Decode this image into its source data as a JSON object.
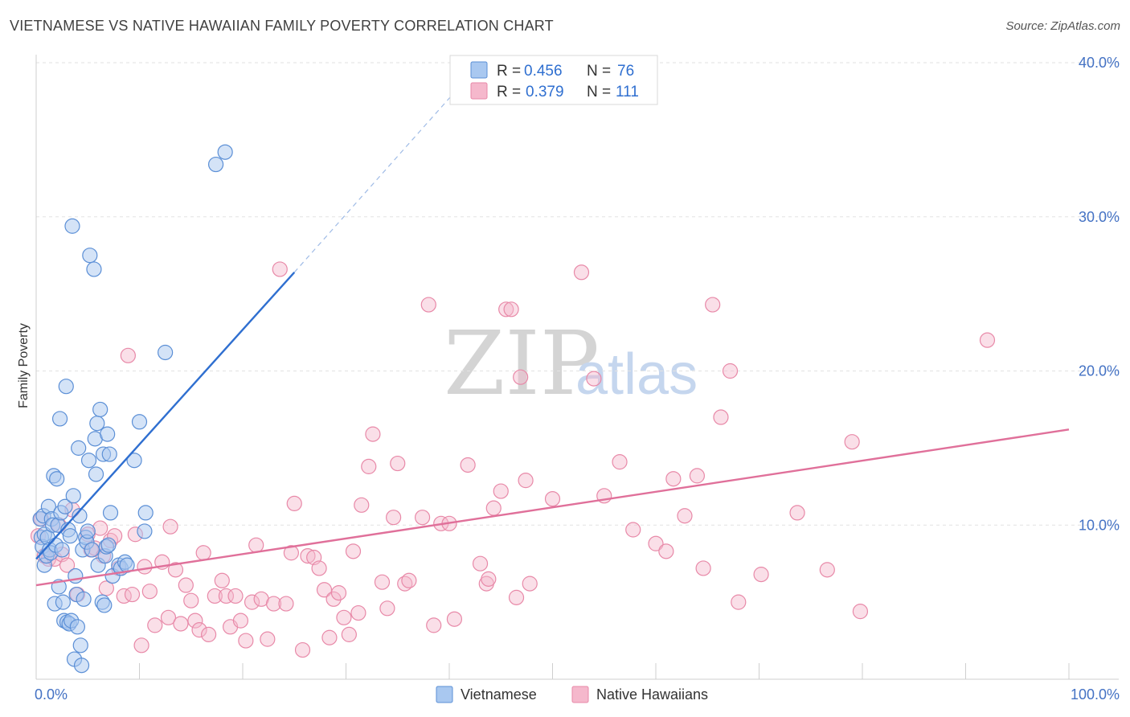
{
  "title": "VIETNAMESE VS NATIVE HAWAIIAN FAMILY POVERTY CORRELATION CHART",
  "source": "Source: ZipAtlas.com",
  "watermark": {
    "zip": "ZIP",
    "atlas": "atlas"
  },
  "colors": {
    "blue_fill": "#a9c8f0",
    "blue_stroke": "#5b8fd6",
    "blue_line": "#2f6fd0",
    "pink_fill": "#f5b8cc",
    "pink_stroke": "#e889a8",
    "pink_line": "#e0709a",
    "grid": "#e2e2e2",
    "axis_text": "#4472c4"
  },
  "legend": {
    "rows": [
      {
        "r_label": "R =",
        "r_value": "0.456",
        "n_label": "N =",
        "n_value": "76"
      },
      {
        "r_label": "R =",
        "r_value": "0.379",
        "n_label": "N =",
        "n_value": "111"
      }
    ]
  },
  "bottom_legend": [
    "Vietnamese",
    "Native Hawaiians"
  ],
  "chart_data": {
    "type": "scatter",
    "title": "VIETNAMESE VS NATIVE HAWAIIAN FAMILY POVERTY CORRELATION CHART",
    "xlabel": "",
    "ylabel": "Family Poverty",
    "xlim": [
      0,
      100
    ],
    "ylim": [
      0,
      40
    ],
    "x_tick_labels": [
      "0.0%",
      "100.0%"
    ],
    "y_ticks": [
      10,
      20,
      30,
      40
    ],
    "y_tick_labels": [
      "10.0%",
      "20.0%",
      "30.0%",
      "40.0%"
    ],
    "series": [
      {
        "name": "Vietnamese",
        "r": 0.456,
        "n": 76,
        "trend": {
          "x": [
            0,
            25
          ],
          "y": [
            7.8,
            26.4
          ]
        },
        "trend_dashed": {
          "x": [
            25,
            42
          ],
          "y": [
            26.4,
            39.2
          ]
        },
        "points": [
          [
            0.4,
            10.4
          ],
          [
            0.5,
            9.2
          ],
          [
            0.6,
            8.6
          ],
          [
            0.7,
            10.6
          ],
          [
            0.8,
            9.4
          ],
          [
            0.8,
            7.4
          ],
          [
            1.0,
            8.0
          ],
          [
            1.1,
            9.2
          ],
          [
            1.2,
            11.2
          ],
          [
            1.3,
            8.4
          ],
          [
            1.4,
            8.2
          ],
          [
            1.5,
            10.4
          ],
          [
            1.6,
            10.0
          ],
          [
            1.7,
            13.2
          ],
          [
            1.8,
            4.9
          ],
          [
            1.9,
            8.7
          ],
          [
            2.0,
            13.0
          ],
          [
            2.1,
            10.0
          ],
          [
            2.2,
            6.0
          ],
          [
            2.3,
            16.9
          ],
          [
            2.4,
            10.8
          ],
          [
            2.5,
            8.4
          ],
          [
            2.6,
            5.0
          ],
          [
            2.7,
            3.8
          ],
          [
            2.8,
            11.2
          ],
          [
            2.9,
            19.0
          ],
          [
            3.0,
            3.7
          ],
          [
            3.1,
            9.7
          ],
          [
            3.2,
            3.6
          ],
          [
            3.3,
            9.3
          ],
          [
            3.4,
            3.8
          ],
          [
            3.5,
            29.4
          ],
          [
            3.6,
            11.9
          ],
          [
            3.7,
            1.3
          ],
          [
            3.8,
            6.7
          ],
          [
            3.9,
            5.5
          ],
          [
            4.0,
            3.4
          ],
          [
            4.1,
            15.0
          ],
          [
            4.2,
            10.6
          ],
          [
            4.3,
            2.2
          ],
          [
            4.4,
            0.9
          ],
          [
            4.5,
            8.4
          ],
          [
            4.6,
            5.2
          ],
          [
            4.8,
            9.2
          ],
          [
            4.9,
            8.9
          ],
          [
            5.0,
            9.6
          ],
          [
            5.1,
            14.2
          ],
          [
            5.2,
            27.5
          ],
          [
            5.4,
            8.4
          ],
          [
            5.6,
            26.6
          ],
          [
            5.7,
            15.6
          ],
          [
            5.8,
            13.3
          ],
          [
            5.9,
            16.6
          ],
          [
            6.0,
            7.4
          ],
          [
            6.2,
            17.5
          ],
          [
            6.4,
            5.0
          ],
          [
            6.5,
            14.6
          ],
          [
            6.6,
            4.8
          ],
          [
            6.7,
            8.0
          ],
          [
            6.8,
            8.6
          ],
          [
            6.9,
            15.9
          ],
          [
            7.0,
            8.7
          ],
          [
            7.1,
            14.6
          ],
          [
            7.2,
            10.8
          ],
          [
            7.4,
            6.7
          ],
          [
            8.0,
            7.4
          ],
          [
            8.2,
            7.2
          ],
          [
            8.6,
            7.6
          ],
          [
            8.8,
            7.4
          ],
          [
            9.5,
            14.2
          ],
          [
            10.0,
            16.7
          ],
          [
            10.5,
            9.6
          ],
          [
            10.6,
            10.8
          ],
          [
            12.5,
            21.2
          ],
          [
            17.4,
            33.4
          ],
          [
            18.3,
            34.2
          ]
        ]
      },
      {
        "name": "Native Hawaiians",
        "r": 0.379,
        "n": 111,
        "trend": {
          "x": [
            0,
            100
          ],
          "y": [
            6.1,
            16.2
          ]
        },
        "points": [
          [
            0.2,
            9.3
          ],
          [
            0.5,
            10.4
          ],
          [
            0.8,
            8.0
          ],
          [
            1.2,
            7.8
          ],
          [
            1.8,
            7.8
          ],
          [
            2.2,
            10.0
          ],
          [
            2.5,
            8.1
          ],
          [
            3.0,
            7.4
          ],
          [
            3.5,
            11.0
          ],
          [
            4.0,
            5.5
          ],
          [
            5.0,
            9.4
          ],
          [
            5.3,
            8.4
          ],
          [
            5.7,
            8.5
          ],
          [
            6.2,
            9.8
          ],
          [
            6.5,
            8.0
          ],
          [
            6.8,
            5.9
          ],
          [
            7.2,
            9.0
          ],
          [
            7.6,
            9.3
          ],
          [
            8.0,
            7.2
          ],
          [
            8.5,
            5.4
          ],
          [
            8.9,
            21.0
          ],
          [
            9.3,
            5.5
          ],
          [
            9.6,
            9.4
          ],
          [
            10.2,
            2.2
          ],
          [
            10.5,
            7.3
          ],
          [
            11.0,
            5.7
          ],
          [
            11.5,
            3.5
          ],
          [
            12.2,
            7.6
          ],
          [
            12.8,
            4.0
          ],
          [
            13.0,
            9.9
          ],
          [
            13.5,
            7.1
          ],
          [
            14.0,
            3.6
          ],
          [
            14.5,
            6.1
          ],
          [
            15.0,
            5.1
          ],
          [
            15.4,
            3.8
          ],
          [
            15.8,
            3.2
          ],
          [
            16.2,
            8.2
          ],
          [
            16.7,
            2.9
          ],
          [
            17.3,
            5.4
          ],
          [
            18.0,
            6.4
          ],
          [
            18.4,
            5.4
          ],
          [
            18.8,
            3.4
          ],
          [
            19.3,
            5.4
          ],
          [
            19.8,
            3.8
          ],
          [
            20.3,
            2.5
          ],
          [
            20.9,
            5.0
          ],
          [
            21.3,
            8.7
          ],
          [
            21.8,
            5.2
          ],
          [
            22.4,
            2.6
          ],
          [
            23.0,
            4.9
          ],
          [
            23.6,
            26.6
          ],
          [
            24.2,
            4.9
          ],
          [
            24.7,
            8.2
          ],
          [
            25.0,
            11.4
          ],
          [
            25.8,
            1.9
          ],
          [
            26.3,
            8.0
          ],
          [
            26.9,
            7.9
          ],
          [
            27.4,
            7.2
          ],
          [
            27.9,
            5.8
          ],
          [
            28.4,
            2.7
          ],
          [
            28.8,
            5.2
          ],
          [
            29.3,
            5.6
          ],
          [
            29.8,
            4.0
          ],
          [
            30.3,
            2.9
          ],
          [
            30.7,
            8.3
          ],
          [
            31.2,
            4.3
          ],
          [
            31.5,
            11.3
          ],
          [
            32.2,
            13.8
          ],
          [
            32.6,
            15.9
          ],
          [
            33.5,
            6.3
          ],
          [
            34.0,
            4.6
          ],
          [
            34.6,
            10.5
          ],
          [
            35.0,
            14.0
          ],
          [
            35.7,
            6.2
          ],
          [
            36.1,
            6.4
          ],
          [
            37.4,
            10.5
          ],
          [
            38.0,
            24.3
          ],
          [
            38.5,
            3.5
          ],
          [
            39.2,
            10.1
          ],
          [
            40.0,
            10.1
          ],
          [
            40.5,
            3.9
          ],
          [
            41.8,
            13.9
          ],
          [
            43.0,
            7.5
          ],
          [
            43.6,
            6.2
          ],
          [
            43.8,
            6.5
          ],
          [
            44.3,
            11.1
          ],
          [
            45.0,
            12.2
          ],
          [
            45.5,
            24.0
          ],
          [
            46.0,
            24.0
          ],
          [
            46.5,
            5.3
          ],
          [
            46.9,
            19.6
          ],
          [
            47.4,
            12.9
          ],
          [
            47.8,
            6.2
          ],
          [
            50.0,
            11.7
          ],
          [
            52.8,
            26.4
          ],
          [
            54.0,
            19.5
          ],
          [
            55.0,
            11.9
          ],
          [
            56.5,
            14.1
          ],
          [
            57.8,
            9.7
          ],
          [
            60.0,
            8.8
          ],
          [
            61.0,
            8.3
          ],
          [
            61.7,
            13.0
          ],
          [
            62.8,
            10.6
          ],
          [
            64.0,
            13.2
          ],
          [
            64.6,
            7.2
          ],
          [
            65.5,
            24.3
          ],
          [
            66.3,
            17.0
          ],
          [
            67.2,
            20.0
          ],
          [
            68.0,
            5.0
          ],
          [
            70.2,
            6.8
          ],
          [
            73.7,
            10.8
          ],
          [
            76.6,
            7.1
          ],
          [
            79.0,
            15.4
          ],
          [
            79.8,
            4.4
          ],
          [
            92.1,
            22.0
          ]
        ]
      }
    ]
  }
}
